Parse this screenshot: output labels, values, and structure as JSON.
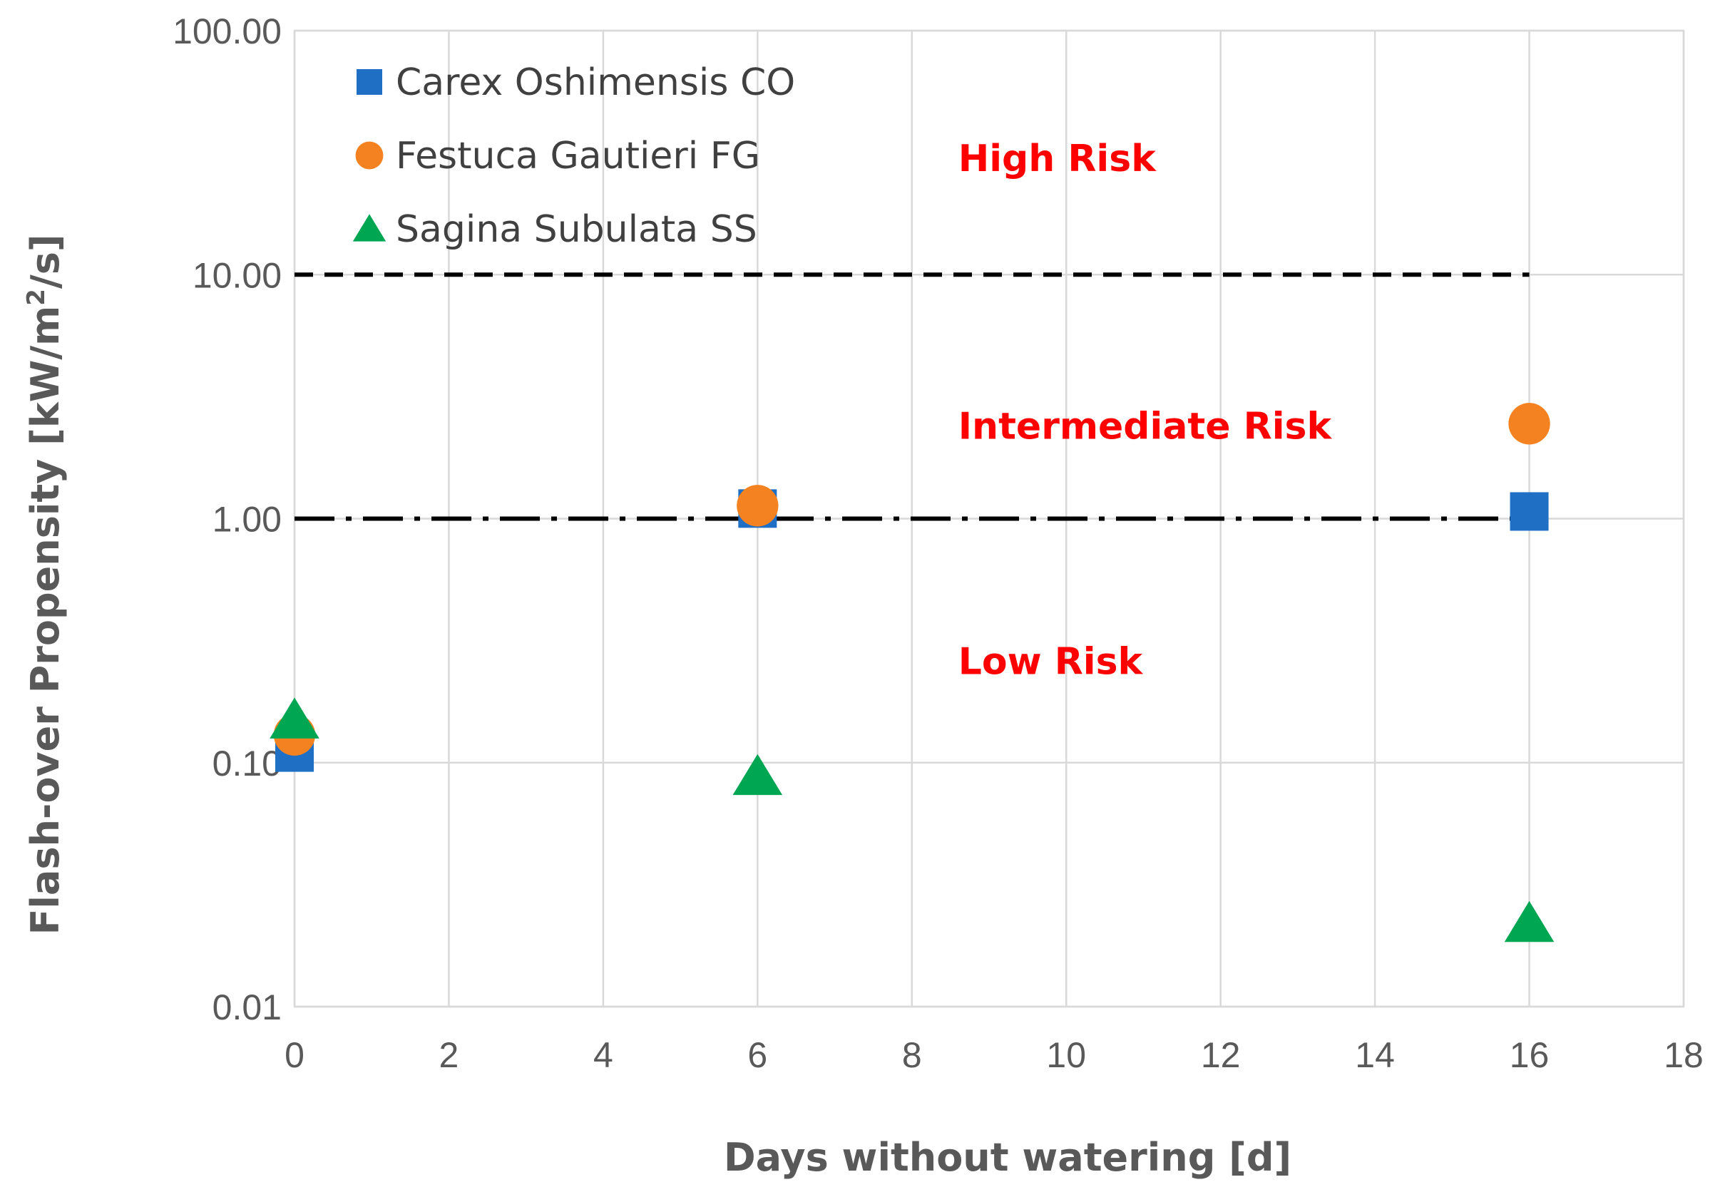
{
  "chart_data": {
    "type": "scatter",
    "xlabel": "Days without watering [d]",
    "ylabel_main": "Flash-over Propensity [kW/m",
    "ylabel_sup": "2",
    "ylabel_end": "/s]",
    "x_range": [
      0,
      18
    ],
    "x_ticks": [
      "0",
      "2",
      "4",
      "6",
      "8",
      "10",
      "12",
      "14",
      "16",
      "18"
    ],
    "y_scale": "log",
    "y_range": [
      0.01,
      100
    ],
    "y_ticks": [
      "0.01",
      "0.10",
      "1.00",
      "10.00",
      "100.00"
    ],
    "grid": true,
    "legend_position": "top-left",
    "series": [
      {
        "name": "Carex Oshimensis CO",
        "marker": "square",
        "color": "#1F6FC5",
        "x": [
          0,
          6,
          16
        ],
        "y": [
          0.11,
          1.1,
          1.07
        ]
      },
      {
        "name": "Festuca Gautieri FG",
        "marker": "circle",
        "color": "#F58220",
        "x": [
          0,
          6,
          16
        ],
        "y": [
          0.13,
          1.13,
          2.45
        ]
      },
      {
        "name": "Sagina Subulata SS",
        "marker": "triangle",
        "color": "#00A651",
        "x": [
          0,
          6,
          16
        ],
        "y": [
          0.15,
          0.088,
          0.022
        ]
      }
    ],
    "threshold_lines": [
      {
        "y": 10,
        "x_from": 0,
        "x_to": 16,
        "style": "dashed"
      },
      {
        "y": 1,
        "x_from": 0,
        "x_to": 16,
        "style": "dash-dot"
      }
    ],
    "annotations": [
      {
        "text": "High Risk",
        "x": 8.6,
        "y": 30,
        "color": "#FF0000"
      },
      {
        "text": "Intermediate Risk",
        "x": 8.6,
        "y": 2.4,
        "color": "#FF0000"
      },
      {
        "text": "Low Risk",
        "x": 8.6,
        "y": 0.26,
        "color": "#FF0000"
      }
    ]
  }
}
